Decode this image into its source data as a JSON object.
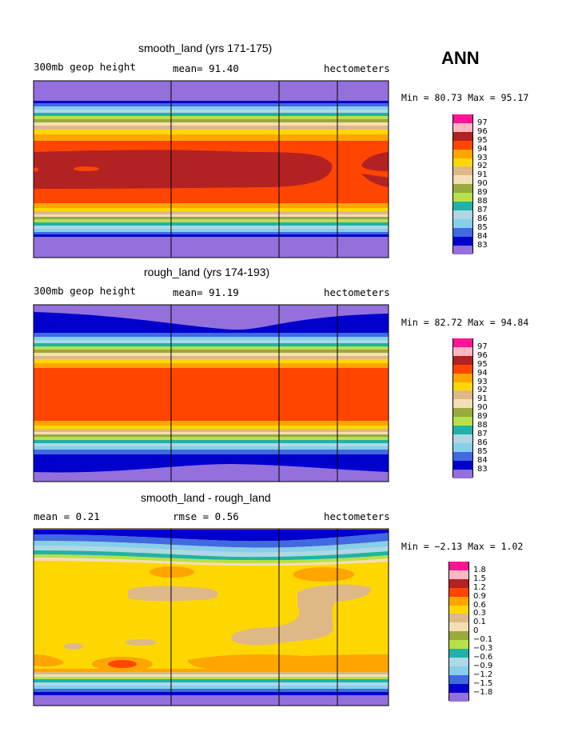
{
  "season": "ANN",
  "chart_data": [
    {
      "type": "contour",
      "title": "smooth_land (yrs 171-175)",
      "left_label": "300mb geop height",
      "center_label": "mean=  91.40",
      "right_label": "hectometers",
      "min_max": "Min =  80.73 Max =  95.17",
      "min": 80.73,
      "max": 95.17,
      "mean": 91.4,
      "levels": [
        "97",
        "96",
        "95",
        "94",
        "93",
        "92",
        "91",
        "90",
        "89",
        "88",
        "87",
        "86",
        "85",
        "84",
        "83"
      ],
      "colors": [
        "#ff1493",
        "#ffb6c1",
        "#b22222",
        "#ff4500",
        "#ffa500",
        "#ffd700",
        "#deb887",
        "#f5deb3",
        "#9aaa3c",
        "#b7e04a",
        "#20b2aa",
        "#add8e6",
        "#87ceeb",
        "#4169e1",
        "#0000cd",
        "#9370db"
      ]
    },
    {
      "type": "contour",
      "title": "rough_land (yrs 174-193)",
      "left_label": "300mb geop height",
      "center_label": "mean=  91.19",
      "right_label": "hectometers",
      "min_max": "Min =  82.72 Max =  94.84",
      "min": 82.72,
      "max": 94.84,
      "mean": 91.19,
      "levels": [
        "97",
        "96",
        "95",
        "94",
        "93",
        "92",
        "91",
        "90",
        "89",
        "88",
        "87",
        "86",
        "85",
        "84",
        "83"
      ],
      "colors": [
        "#ff1493",
        "#ffb6c1",
        "#b22222",
        "#ff4500",
        "#ffa500",
        "#ffd700",
        "#deb887",
        "#f5deb3",
        "#9aaa3c",
        "#b7e04a",
        "#20b2aa",
        "#add8e6",
        "#87ceeb",
        "#4169e1",
        "#0000cd",
        "#9370db"
      ]
    },
    {
      "type": "contour",
      "title": "smooth_land - rough_land",
      "left_label": "mean =   0.21",
      "center_label": "rmse =   0.56",
      "right_label": "hectometers",
      "min_max": "Min =  −2.13 Max =   1.02",
      "min": -2.13,
      "max": 1.02,
      "mean": 0.21,
      "rmse": 0.56,
      "levels": [
        "1.8",
        "1.5",
        "1.2",
        "0.9",
        "0.6",
        "0.3",
        "0.1",
        "0",
        "−0.1",
        "−0.3",
        "−0.6",
        "−0.9",
        "−1.2",
        "−1.5",
        "−1.8"
      ],
      "colors": [
        "#ff1493",
        "#ffb6c1",
        "#b22222",
        "#ff4500",
        "#ffa500",
        "#ffd700",
        "#deb887",
        "#f5deb3",
        "#9aaa3c",
        "#b7e04a",
        "#20b2aa",
        "#add8e6",
        "#87ceeb",
        "#4169e1",
        "#0000cd",
        "#9370db"
      ]
    }
  ]
}
